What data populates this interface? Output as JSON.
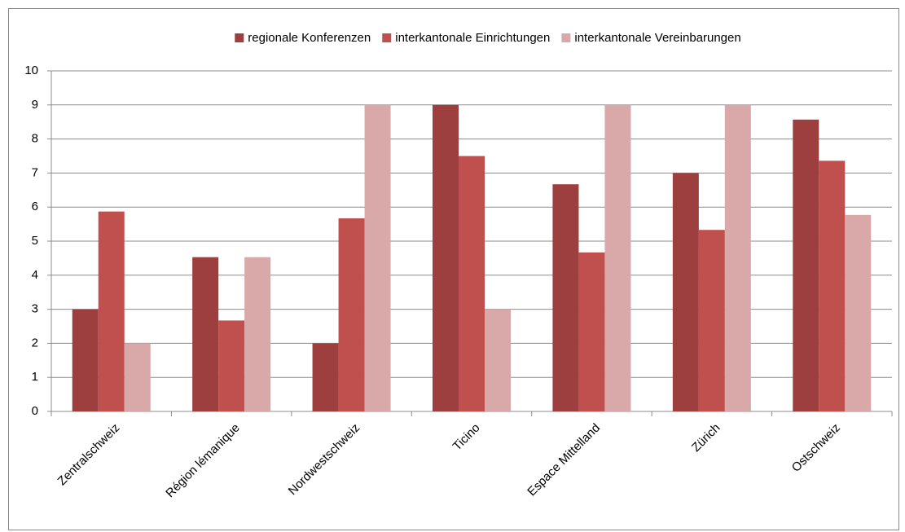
{
  "chart_data": {
    "type": "bar",
    "categories": [
      "Zentralschweiz",
      "Région lémanique",
      "Nordwestschweiz",
      "Ticino",
      "Espace Mittelland",
      "Zürich",
      "Ostschweiz"
    ],
    "series": [
      {
        "name": "regionale Konferenzen",
        "color": "#9e3f3f",
        "values": [
          3,
          4.53,
          2,
          9,
          6.67,
          7,
          8.57
        ]
      },
      {
        "name": "interkantonale Einrichtungen",
        "color": "#c0504d",
        "values": [
          5.87,
          2.67,
          5.67,
          7.5,
          4.67,
          5.33,
          7.36
        ]
      },
      {
        "name": "interkantonale Vereinbarungen",
        "color": "#d9a8a8",
        "values": [
          2,
          4.53,
          9,
          3,
          9,
          9,
          5.77
        ]
      }
    ],
    "ylim": [
      0,
      10
    ],
    "yticks": [
      0,
      1,
      2,
      3,
      4,
      5,
      6,
      7,
      8,
      9,
      10
    ],
    "grid": true,
    "legend": "top"
  }
}
